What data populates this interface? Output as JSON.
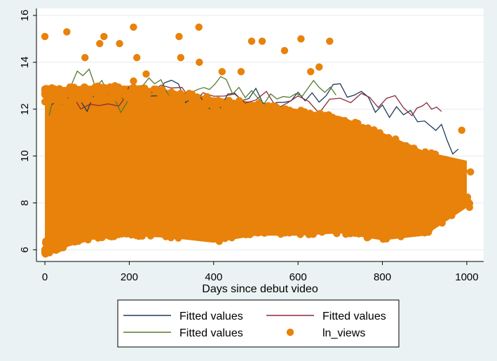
{
  "chart_data": {
    "type": "scatter",
    "title": "",
    "xlabel": "Days since debut video",
    "ylabel": "",
    "xlim": [
      -20,
      1040
    ],
    "ylim": [
      5.5,
      16.3
    ],
    "xticks": [
      0,
      200,
      400,
      600,
      800,
      1000
    ],
    "yticks": [
      6,
      8,
      10,
      12,
      14,
      16
    ],
    "grid": true,
    "legend_position": "bottom",
    "legend_columns": 2,
    "colors": {
      "scatter": "#e8820a",
      "fit_navy": "#1f3b5a",
      "fit_maroon": "#8a2a3a",
      "fit_green": "#587a2e",
      "background": "#eaf2f3",
      "plot_bg": "#ffffff",
      "grid": "#e3ebee"
    },
    "series": [
      {
        "name": "Fitted values",
        "kind": "line",
        "color_key": "fit_navy",
        "x": [
          0,
          100,
          200,
          300,
          400,
          500,
          600,
          700,
          800,
          900,
          980
        ],
        "y": [
          12.4,
          12.2,
          12.7,
          12.9,
          12.1,
          12.6,
          12.3,
          12.8,
          12.1,
          11.6,
          10.3
        ]
      },
      {
        "name": "Fitted values",
        "kind": "line",
        "color_key": "fit_maroon",
        "x": [
          20,
          150,
          300,
          450,
          600,
          750,
          870,
          940
        ],
        "y": [
          12.6,
          12.3,
          12.8,
          12.5,
          12.2,
          12.4,
          12.0,
          11.9
        ]
      },
      {
        "name": "Fitted values",
        "kind": "line",
        "color_key": "fit_green",
        "x": [
          10,
          90,
          180,
          260,
          350,
          430,
          520,
          610,
          690
        ],
        "y": [
          12.1,
          13.6,
          12.3,
          13.0,
          12.6,
          13.1,
          12.4,
          12.9,
          12.6
        ]
      },
      {
        "name": "ln_views",
        "kind": "scatter",
        "color_key": "scatter",
        "x": [
          0,
          52,
          210,
          365,
          318,
          140,
          130,
          95,
          177,
          490,
          515,
          568,
          607,
          675,
          218,
          322,
          366,
          630,
          650,
          465,
          420,
          210,
          240,
          988
        ],
        "y": [
          15.1,
          15.3,
          15.5,
          15.5,
          15.1,
          15.1,
          14.8,
          14.2,
          14.8,
          14.9,
          14.9,
          14.5,
          15.0,
          14.9,
          14.2,
          14.2,
          14.0,
          13.6,
          13.8,
          13.6,
          13.6,
          13.2,
          13.5,
          11.1
        ],
        "band": {
          "x": [
            0,
            100,
            200,
            300,
            400,
            500,
            600,
            700,
            800,
            900,
            1000
          ],
          "upper": [
            12.9,
            13.0,
            13.0,
            12.8,
            12.5,
            12.3,
            12.0,
            11.7,
            11.0,
            10.2,
            9.8
          ],
          "lower": [
            5.8,
            6.4,
            6.6,
            6.5,
            6.3,
            6.6,
            6.6,
            6.7,
            6.4,
            6.6,
            7.8
          ]
        }
      }
    ]
  }
}
